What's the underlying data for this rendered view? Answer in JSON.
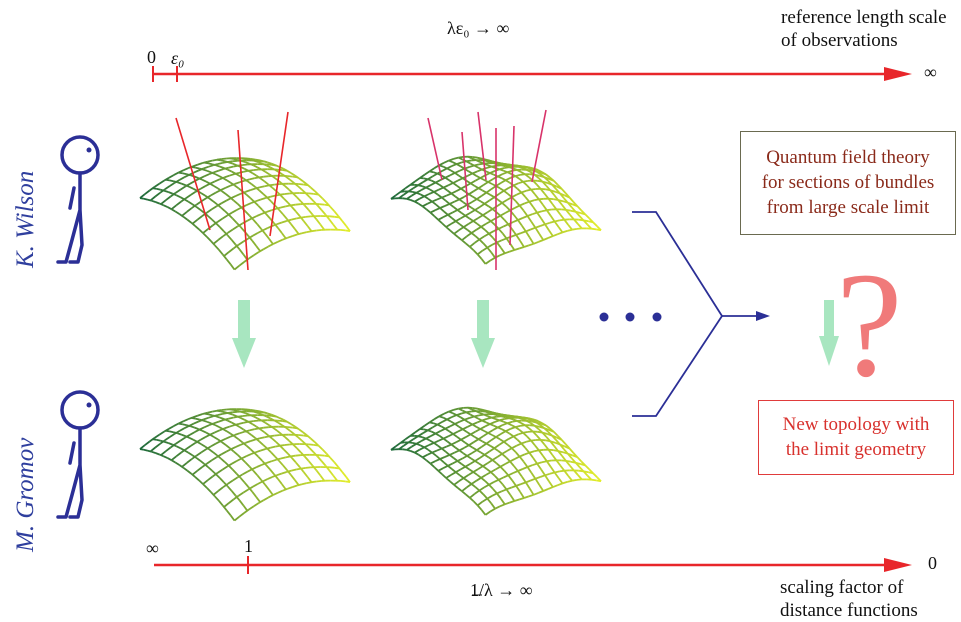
{
  "top_axis": {
    "start_label": "0",
    "epsilon_label": "ε₀",
    "end_label": "∞",
    "caption_lines": [
      "reference length scale",
      "of observations"
    ],
    "formula": "λε₀ → ∞"
  },
  "bottom_axis": {
    "start_label": "∞",
    "tick_label": "1",
    "end_label": "0",
    "caption_lines": [
      "scaling factor of",
      "distance functions"
    ],
    "formula": "1/λ → ∞"
  },
  "people": {
    "top": "K. Wilson",
    "bottom": "M. Gromov"
  },
  "boxes": {
    "quantum_lines": [
      "Quantum field theory",
      "for sections of bundles",
      "from large scale limit"
    ],
    "topology_lines": [
      "New topology with",
      "the limit geometry"
    ]
  },
  "question": "?",
  "colors": {
    "axis": "#e8262a",
    "stick_figure": "#2b2f96",
    "down_arrow": "#a8e6c0",
    "bracket": "#2b2f96",
    "question": "#f07a7a",
    "mesh_dark": "#1f6b3a",
    "mesh_light": "#e6ef2a",
    "spike": "#d8336a"
  }
}
